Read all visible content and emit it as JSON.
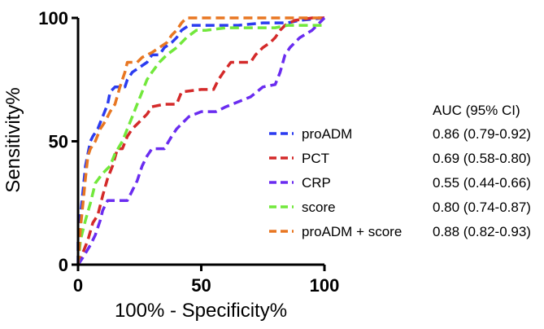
{
  "chart_data": {
    "type": "line",
    "title": "",
    "xlabel": "100% - Specificity%",
    "ylabel": "Sensitivity%",
    "xlim": [
      0,
      100
    ],
    "ylim": [
      0,
      100
    ],
    "xticks": [
      "0",
      "50",
      "100"
    ],
    "yticks": [
      "0",
      "50",
      "100"
    ],
    "grid": false,
    "legend_position": "right",
    "legend_value_header": "AUC (95% CI)",
    "line_style": "dashed",
    "series": [
      {
        "name": "proADM",
        "auc": "0.86 (0.79-0.92)",
        "color": "#2b3cf0",
        "points": [
          [
            0,
            0
          ],
          [
            0,
            10
          ],
          [
            1,
            20
          ],
          [
            2,
            30
          ],
          [
            3,
            40
          ],
          [
            4,
            45
          ],
          [
            5,
            50
          ],
          [
            6,
            52
          ],
          [
            8,
            55
          ],
          [
            10,
            60
          ],
          [
            12,
            65
          ],
          [
            13,
            70
          ],
          [
            15,
            72
          ],
          [
            17,
            72
          ],
          [
            19,
            72
          ],
          [
            20,
            75
          ],
          [
            22,
            78
          ],
          [
            25,
            80
          ],
          [
            28,
            82
          ],
          [
            30,
            85
          ],
          [
            33,
            85
          ],
          [
            35,
            88
          ],
          [
            38,
            90
          ],
          [
            40,
            92
          ],
          [
            42,
            95
          ],
          [
            45,
            97
          ],
          [
            55,
            97
          ],
          [
            65,
            97
          ],
          [
            75,
            98
          ],
          [
            85,
            98
          ],
          [
            90,
            99
          ],
          [
            100,
            100
          ]
        ]
      },
      {
        "name": "PCT",
        "auc": "0.69 (0.58-0.80)",
        "color": "#d42a2a",
        "points": [
          [
            0,
            0
          ],
          [
            2,
            5
          ],
          [
            4,
            10
          ],
          [
            6,
            17
          ],
          [
            8,
            20
          ],
          [
            10,
            28
          ],
          [
            12,
            35
          ],
          [
            14,
            40
          ],
          [
            16,
            47
          ],
          [
            18,
            47
          ],
          [
            20,
            52
          ],
          [
            22,
            55
          ],
          [
            25,
            58
          ],
          [
            28,
            61
          ],
          [
            30,
            64
          ],
          [
            35,
            65
          ],
          [
            40,
            65
          ],
          [
            42,
            70
          ],
          [
            50,
            71
          ],
          [
            55,
            71
          ],
          [
            57,
            75
          ],
          [
            59,
            78
          ],
          [
            62,
            82
          ],
          [
            70,
            82
          ],
          [
            72,
            85
          ],
          [
            75,
            88
          ],
          [
            78,
            90
          ],
          [
            80,
            92
          ],
          [
            82,
            95
          ],
          [
            84,
            97
          ],
          [
            88,
            99
          ],
          [
            95,
            100
          ],
          [
            100,
            100
          ]
        ]
      },
      {
        "name": "CRP",
        "auc": "0.55 (0.44-0.66)",
        "color": "#6a2cf0",
        "points": [
          [
            0,
            0
          ],
          [
            2,
            3
          ],
          [
            5,
            8
          ],
          [
            7,
            12
          ],
          [
            9,
            18
          ],
          [
            10,
            22
          ],
          [
            12,
            26
          ],
          [
            20,
            26
          ],
          [
            22,
            30
          ],
          [
            24,
            34
          ],
          [
            26,
            40
          ],
          [
            28,
            44
          ],
          [
            30,
            47
          ],
          [
            35,
            47
          ],
          [
            38,
            52
          ],
          [
            40,
            55
          ],
          [
            45,
            60
          ],
          [
            50,
            62
          ],
          [
            56,
            62
          ],
          [
            60,
            64
          ],
          [
            65,
            66
          ],
          [
            70,
            68
          ],
          [
            75,
            72
          ],
          [
            80,
            73
          ],
          [
            82,
            78
          ],
          [
            84,
            85
          ],
          [
            86,
            88
          ],
          [
            88,
            90
          ],
          [
            90,
            92
          ],
          [
            95,
            95
          ],
          [
            100,
            100
          ]
        ]
      },
      {
        "name": "score",
        "auc": "0.80 (0.74-0.87)",
        "color": "#72e83c",
        "points": [
          [
            0,
            0
          ],
          [
            1,
            10
          ],
          [
            3,
            18
          ],
          [
            5,
            25
          ],
          [
            7,
            33
          ],
          [
            10,
            37
          ],
          [
            13,
            40
          ],
          [
            15,
            45
          ],
          [
            18,
            50
          ],
          [
            20,
            55
          ],
          [
            22,
            60
          ],
          [
            24,
            65
          ],
          [
            26,
            70
          ],
          [
            28,
            75
          ],
          [
            30,
            78
          ],
          [
            33,
            82
          ],
          [
            36,
            85
          ],
          [
            40,
            88
          ],
          [
            44,
            92
          ],
          [
            48,
            95
          ],
          [
            52,
            95
          ],
          [
            60,
            96
          ],
          [
            70,
            96
          ],
          [
            80,
            96
          ],
          [
            85,
            97
          ],
          [
            92,
            97
          ],
          [
            100,
            97
          ]
        ]
      },
      {
        "name": "proADM + score",
        "auc": "0.88 (0.82-0.93)",
        "color": "#e87722",
        "points": [
          [
            0,
            0
          ],
          [
            1,
            15
          ],
          [
            2,
            25
          ],
          [
            3,
            35
          ],
          [
            4,
            44
          ],
          [
            5,
            47
          ],
          [
            7,
            50
          ],
          [
            9,
            55
          ],
          [
            11,
            58
          ],
          [
            13,
            62
          ],
          [
            15,
            65
          ],
          [
            17,
            72
          ],
          [
            19,
            78
          ],
          [
            20,
            82
          ],
          [
            24,
            82
          ],
          [
            26,
            84
          ],
          [
            30,
            86
          ],
          [
            33,
            88
          ],
          [
            36,
            90
          ],
          [
            38,
            93
          ],
          [
            40,
            95
          ],
          [
            42,
            98
          ],
          [
            44,
            100
          ],
          [
            55,
            100
          ],
          [
            70,
            100
          ],
          [
            85,
            100
          ],
          [
            100,
            100
          ]
        ]
      }
    ]
  }
}
